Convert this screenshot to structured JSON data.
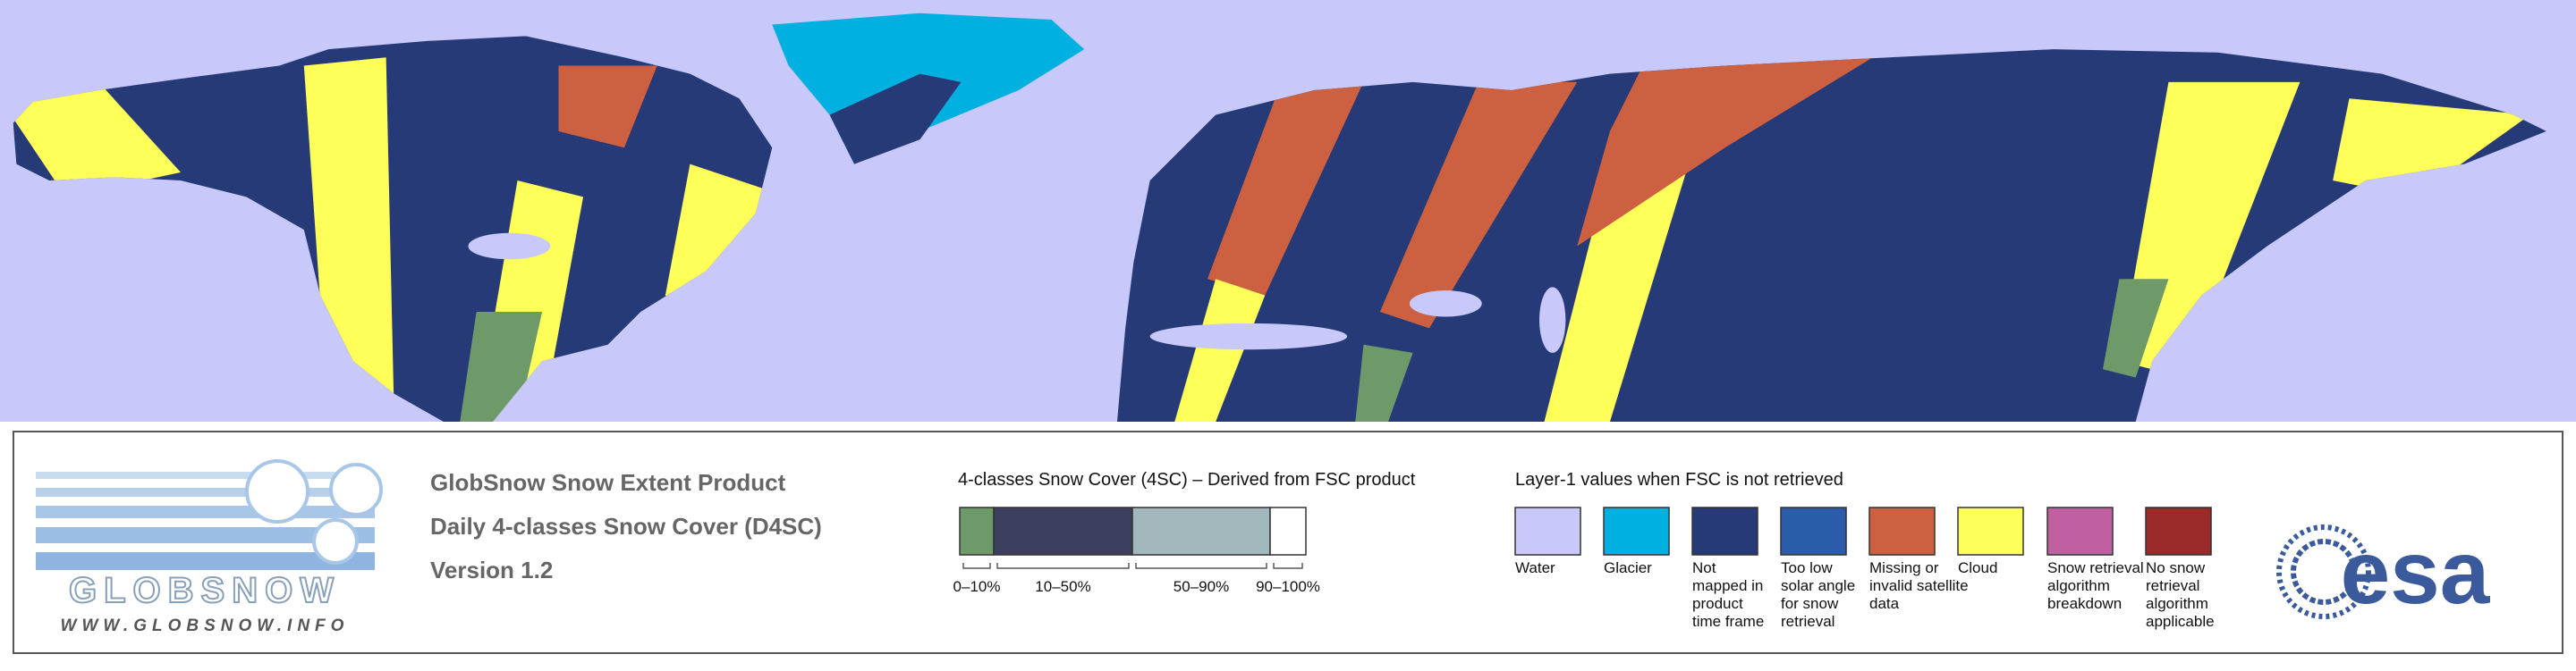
{
  "header": {
    "lines": [
      "GlobSnow Snow Extent Product",
      "Daily 4-classes Snow Cover (D4SC)",
      "Version 1.2"
    ]
  },
  "logo": {
    "name": "GLOBSNOW",
    "url": "WWW.GLOBSNOW.INFO"
  },
  "legend_4sc": {
    "title": "4-classes Snow Cover (4SC) – Derived from FSC product",
    "classes": [
      {
        "label": "0–10%",
        "color": "#6e9a6a"
      },
      {
        "label": "10–50%",
        "color": "#3c3e5e"
      },
      {
        "label": "50–90%",
        "color": "#a2b8bc"
      },
      {
        "label": "90–100%",
        "color": "#ffffff"
      }
    ]
  },
  "legend_layer1": {
    "title": "Layer-1 values when FSC is not retrieved",
    "items": [
      {
        "label_lines": [
          "Water"
        ],
        "color": "#c8c8fa"
      },
      {
        "label_lines": [
          "Glacier"
        ],
        "color": "#00b0e0"
      },
      {
        "label_lines": [
          "Not",
          "mapped in",
          "product",
          "time frame"
        ],
        "color": "#263a78"
      },
      {
        "label_lines": [
          "Too low",
          "solar angle",
          "for snow",
          "retrieval"
        ],
        "color": "#2a5caa"
      },
      {
        "label_lines": [
          "Missing or",
          "invalid satellite",
          "data"
        ],
        "color": "#cc6040"
      },
      {
        "label_lines": [
          "Cloud"
        ],
        "color": "#ffff5a"
      },
      {
        "label_lines": [
          "Snow retrieval",
          "algorithm",
          "breakdown"
        ],
        "color": "#c060a0"
      },
      {
        "label_lines": [
          "No snow",
          "retrieval",
          "algorithm",
          "applicable"
        ],
        "color": "#9a2a2a"
      }
    ]
  },
  "esa_logo": "esa"
}
